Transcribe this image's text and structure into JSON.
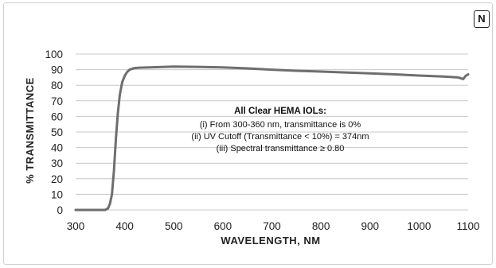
{
  "badge": "N",
  "chart_data": {
    "type": "line",
    "title": "",
    "xlabel": "WAVELENGTH, NM",
    "ylabel": "% TRANSMITTANCE",
    "xlim": [
      300,
      1100
    ],
    "ylim": [
      0,
      100
    ],
    "x_ticks": [
      300,
      400,
      500,
      600,
      700,
      800,
      900,
      1000,
      1100
    ],
    "y_ticks": [
      0,
      10,
      20,
      30,
      40,
      50,
      60,
      70,
      80,
      90,
      100
    ],
    "grid": "horizontal",
    "line_color": "#6e6e6e",
    "series": [
      {
        "x": [
          300,
          360,
          366,
          370,
          374,
          378,
          382,
          386,
          390,
          395,
          400,
          405,
          410,
          420,
          430,
          450,
          500,
          550,
          600,
          650,
          700,
          750,
          800,
          850,
          900,
          950,
          1000,
          1050,
          1080,
          1090,
          1095,
          1100
        ],
        "values": [
          0,
          0,
          1,
          4,
          10,
          25,
          45,
          62,
          74,
          82,
          86,
          88.5,
          90,
          91,
          91.3,
          91.5,
          92,
          91.8,
          91.5,
          90.8,
          90,
          89.3,
          88.8,
          88.2,
          87.6,
          87,
          86.2,
          85.6,
          85,
          84,
          86,
          87
        ]
      }
    ],
    "annotation": {
      "title": "All Clear HEMA IOLs:",
      "lines": [
        "(i) From 300-360 nm, transmittance is 0%",
        "(ii) UV Cutoff (Transmittance < 10%) = 374nm",
        "(iii) Spectral transmittance ≥ 0.80"
      ]
    }
  }
}
